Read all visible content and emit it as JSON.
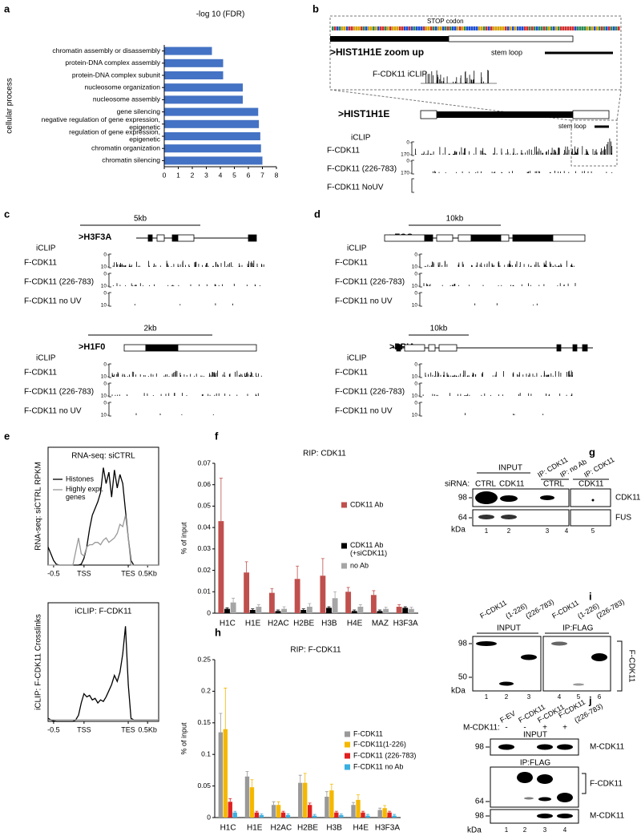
{
  "panel_labels": [
    "a",
    "b",
    "c",
    "d",
    "e",
    "f",
    "g",
    "h",
    "i",
    "j"
  ],
  "chart_data": [
    {
      "type": "barh",
      "title": "-log 10 (FDR)",
      "ylabel": "cellular process",
      "categories": [
        "chromatin assembly or disassembly",
        "protein-DNA complex assembly",
        "protein-DNA complex subunit",
        "nucleosome organization",
        "nucleosome assembly",
        "gene silencing",
        "negative regulation of gene expression,\nepigenetic",
        "regulation of gene expression,\nepigenetic",
        "chromatin organization",
        "chromatin silencing"
      ],
      "values": [
        3.4,
        4.2,
        4.2,
        5.6,
        5.6,
        6.7,
        6.75,
        6.85,
        6.9,
        7.0
      ],
      "color": "#4472c4",
      "xlim": [
        0,
        8
      ],
      "xticks": [
        0,
        1,
        2,
        3,
        4,
        5,
        6,
        7,
        8
      ]
    },
    {
      "type": "line",
      "title": "RNA-seq: siCTRL",
      "ylabel": "RNA-seq: siCTRL  RPKM",
      "x": [
        0,
        1,
        2,
        3,
        4,
        5,
        6,
        7,
        8,
        9,
        10,
        11,
        12,
        13,
        14,
        15,
        16,
        17,
        18,
        19,
        20,
        21,
        22,
        23,
        24,
        25,
        26,
        27,
        28,
        29,
        30,
        31,
        32,
        33,
        34,
        35,
        36,
        37,
        38,
        39,
        40
      ],
      "xlim": [
        0,
        40
      ],
      "xticks": [
        {
          "value": 2,
          "label": "-0.5"
        },
        {
          "value": 13,
          "label": "TSS"
        },
        {
          "value": 29,
          "label": "TES"
        },
        {
          "value": 36,
          "label": "0.5Kb"
        }
      ],
      "ylim": [
        0,
        230
      ],
      "series": [
        {
          "name": "Histones",
          "color": "#000000",
          "values": [
            40,
            25,
            10,
            2,
            0,
            0,
            0,
            0,
            0,
            0,
            0,
            0,
            2,
            15,
            40,
            80,
            110,
            125,
            140,
            160,
            215,
            180,
            205,
            150,
            210,
            170,
            200,
            180,
            120,
            60,
            10,
            0,
            0,
            0,
            0,
            0,
            0,
            0,
            0,
            0,
            0
          ]
        },
        {
          "name": "Highly expr.\ngenes",
          "color": "#999999",
          "values": [
            0,
            0,
            0,
            0,
            0,
            0,
            0,
            0,
            0,
            0,
            30,
            60,
            25,
            20,
            40,
            45,
            45,
            50,
            50,
            45,
            55,
            60,
            50,
            55,
            60,
            70,
            90,
            85,
            110,
            60,
            0,
            0,
            0,
            0,
            0,
            0,
            0,
            0,
            0,
            0,
            0
          ]
        }
      ]
    },
    {
      "type": "line",
      "title": "iCLIP: F-CDK11",
      "ylabel": "iCLIP: F-CDK11 Crosslinks",
      "x": [
        0,
        1,
        2,
        3,
        4,
        5,
        6,
        7,
        8,
        9,
        10,
        11,
        12,
        13,
        14,
        15,
        16,
        17,
        18,
        19,
        20,
        21,
        22,
        23,
        24,
        25,
        26,
        27,
        28,
        29,
        30,
        31,
        32,
        33,
        34,
        35,
        36,
        37,
        38,
        39,
        40
      ],
      "xlim": [
        0,
        40
      ],
      "xticks": [
        {
          "value": 2,
          "label": "-0.5"
        },
        {
          "value": 13,
          "label": "TSS"
        },
        {
          "value": 29,
          "label": "TES"
        },
        {
          "value": 36,
          "label": "0.5Kb"
        }
      ],
      "ylim": [
        0,
        3.5
      ],
      "series": [
        {
          "color": "#000000",
          "values": [
            0.1,
            0.05,
            0.02,
            0,
            0,
            0,
            0,
            0,
            0,
            0,
            0.05,
            0.2,
            0.6,
            0.9,
            0.8,
            0.85,
            0.7,
            0.75,
            0.6,
            0.7,
            0.65,
            0.8,
            1.0,
            1.2,
            1.5,
            1.3,
            1.6,
            2.2,
            3.1,
            1.2,
            0.1,
            0.05,
            0.05,
            0.05,
            0.05,
            0.05,
            0.05,
            0.05,
            0.05,
            0.05,
            0.05
          ]
        },
        {
          "color": "#999999",
          "values": [
            0.05,
            0.05,
            0.05,
            0.05,
            0.05,
            0.05,
            0.05,
            0.05,
            0.05,
            0.05,
            0.05,
            0.05,
            0.05,
            0.05,
            0.05,
            0.05,
            0.05,
            0.05,
            0.05,
            0.05,
            0.05,
            0.05,
            0.05,
            0.05,
            0.05,
            0.05,
            0.05,
            0.05,
            0.05,
            0.05,
            0.05,
            0.05,
            0.05,
            0.05,
            0.05,
            0.05,
            0.05,
            0.05,
            0.05,
            0.05,
            0.05
          ]
        }
      ]
    },
    {
      "type": "bar",
      "title": "RIP: CDK11",
      "ylabel": "% of input",
      "categories": [
        "H1C",
        "H1E",
        "H2AC",
        "H2BE",
        "H3B",
        "H4E",
        "MAZ",
        "H3F3A"
      ],
      "ylim": [
        0,
        0.07
      ],
      "yticks": [
        0,
        0.01,
        0.02,
        0.03,
        0.04,
        0.05,
        0.06,
        0.07
      ],
      "series": [
        {
          "name": "CDK11 Ab",
          "color": "#c0504d",
          "values": [
            0.043,
            0.019,
            0.0095,
            0.016,
            0.0175,
            0.01,
            0.0085,
            0.003
          ],
          "errors": [
            0.02,
            0.005,
            0.002,
            0.006,
            0.008,
            0.002,
            0.002,
            0.001
          ]
        },
        {
          "name": "CDK11 Ab\n(+siCDK11)",
          "color": "#000000",
          "values": [
            0.002,
            0.0015,
            0.001,
            0.0015,
            0.0025,
            0.001,
            0.001,
            0.0025
          ],
          "errors": [
            0.0005,
            0.0005,
            0.0005,
            0.0005,
            0.0005,
            0.0005,
            0.0005,
            0.0005
          ]
        },
        {
          "name": "no Ab",
          "color": "#a6a6a6",
          "values": [
            0.005,
            0.003,
            0.002,
            0.003,
            0.007,
            0.003,
            0.002,
            0.002
          ],
          "errors": [
            0.002,
            0.001,
            0.001,
            0.0015,
            0.003,
            0.001,
            0.0008,
            0.0008
          ]
        }
      ]
    },
    {
      "type": "bar",
      "title": "RIP: F-CDK11",
      "ylabel": "% of input",
      "categories": [
        "H1C",
        "H1E",
        "H2AC",
        "H2BE",
        "H3B",
        "H4E",
        "H3F3A"
      ],
      "ylim": [
        0,
        0.25
      ],
      "yticks": [
        0,
        0.05,
        0.1,
        0.15,
        0.2,
        0.25
      ],
      "series": [
        {
          "name": "F-CDK11",
          "color": "#999999",
          "values": [
            0.135,
            0.065,
            0.02,
            0.055,
            0.033,
            0.02,
            0.012
          ],
          "errors": [
            0.03,
            0.008,
            0.005,
            0.012,
            0.008,
            0.004,
            0.003
          ]
        },
        {
          "name": "F-CDK11(1-226)",
          "color": "#f5b800",
          "values": [
            0.14,
            0.048,
            0.02,
            0.055,
            0.043,
            0.028,
            0.015
          ],
          "errors": [
            0.065,
            0.012,
            0.005,
            0.015,
            0.01,
            0.008,
            0.004
          ]
        },
        {
          "name": "F-CDK11 (226-783)",
          "color": "#e02020",
          "values": [
            0.025,
            0.008,
            0.008,
            0.02,
            0.008,
            0.008,
            0.008
          ],
          "errors": [
            0.005,
            0.002,
            0.002,
            0.003,
            0.002,
            0.002,
            0.002
          ]
        },
        {
          "name": "F-CDK11 no Ab",
          "color": "#3ab0e0",
          "values": [
            0.008,
            0.004,
            0.004,
            0.003,
            0.004,
            0.003,
            0.003
          ],
          "errors": [
            0.002,
            0.002,
            0.002,
            0.002,
            0.002,
            0.002,
            0.002
          ]
        }
      ]
    }
  ],
  "panel_b": {
    "stop_codon": "STOP codon",
    "zoom_title": ">HIST1H1E zoom up",
    "zoom_stem_loop": "stem loop",
    "zoom_track": "F-CDK11 iCLIP",
    "gene": ">HIST1H1E",
    "stem_loop": "stem loop",
    "header": "iCLIP",
    "rows": [
      {
        "name": "F-CDK11",
        "ylim": [
          0,
          170
        ]
      },
      {
        "name": "F-CDK11 (226-783)",
        "ylim": [
          0,
          170
        ]
      },
      {
        "name": "F-CDK11 NoUV"
      }
    ]
  },
  "genome_tracks": [
    {
      "scale": "5kb",
      "gene": ">H3F3A",
      "header": "iCLIP",
      "rows": [
        {
          "name": "F-CDK11",
          "ylim": [
            0,
            10
          ]
        },
        {
          "name": "F-CDK11 (226-783)",
          "ylim": [
            0,
            10
          ]
        },
        {
          "name": "F-CDK11 no UV",
          "ylim": [
            0,
            10
          ]
        }
      ]
    },
    {
      "scale": "2kb",
      "gene": ">H1F0",
      "header": "iCLIP",
      "rows": [
        {
          "name": "F-CDK11",
          "ylim": [
            0,
            10
          ]
        },
        {
          "name": "F-CDK11 (226-783)",
          "ylim": [
            0,
            10
          ]
        },
        {
          "name": "F-CDK11 no UV",
          "ylim": [
            0,
            10
          ]
        }
      ]
    },
    {
      "scale": "10kb",
      "gene": ">FOS",
      "header": "iCLIP",
      "rows": [
        {
          "name": "F-CDK11",
          "ylim": [
            0,
            10
          ]
        },
        {
          "name": "F-CDK11 (226-783)",
          "ylim": [
            0,
            10
          ]
        },
        {
          "name": "F-CDK11 no UV",
          "ylim": [
            0,
            10
          ]
        }
      ]
    },
    {
      "scale": "10kb",
      "gene": ">PPIA",
      "header": "iCLIP",
      "rows": [
        {
          "name": "F-CDK11",
          "ylim": [
            0,
            10
          ]
        },
        {
          "name": "F-CDK11 (226-783)",
          "ylim": [
            0,
            10
          ]
        },
        {
          "name": "F-CDK11 no UV",
          "ylim": [
            0,
            10
          ]
        }
      ]
    }
  ],
  "blot_g": {
    "headers": [
      "INPUT",
      "IP: CDK11",
      "IP: no Ab",
      "IP: CDK11"
    ],
    "sirna_label": "siRNA:",
    "sirna": [
      "CTRL",
      "CDK11",
      "CTRL",
      "CDK11"
    ],
    "markers": [
      98,
      64
    ],
    "unit": "kDa",
    "bands": [
      "CDK11",
      "FUS"
    ],
    "lanes": [
      1,
      2,
      3,
      4,
      5
    ]
  },
  "blot_i": {
    "columns": [
      "F-CDK11",
      "(1-226)",
      "(226-783)",
      "F-CDK11",
      "(1-226)",
      "(226-783)"
    ],
    "headers": [
      "INPUT",
      "IP:FLAG"
    ],
    "markers": [
      98,
      50
    ],
    "unit": "kDa",
    "band": "F-CDK11",
    "lanes": [
      1,
      2,
      3,
      4,
      5,
      6
    ]
  },
  "blot_j": {
    "columns": [
      "F-EV",
      "F-CDK11",
      "F-CDK11",
      "F-CDK11",
      "(226-783)"
    ],
    "m_label": "M-CDK11:",
    "m_signs": [
      "-",
      "-",
      "+",
      "+"
    ],
    "headers": [
      "INPUT",
      "IP:FLAG"
    ],
    "markers": [
      98,
      64,
      98
    ],
    "bands": [
      "M-CDK11",
      "F-CDK11",
      "M-CDK11"
    ],
    "unit": "kDa",
    "lanes": [
      1,
      2,
      3,
      4
    ]
  }
}
